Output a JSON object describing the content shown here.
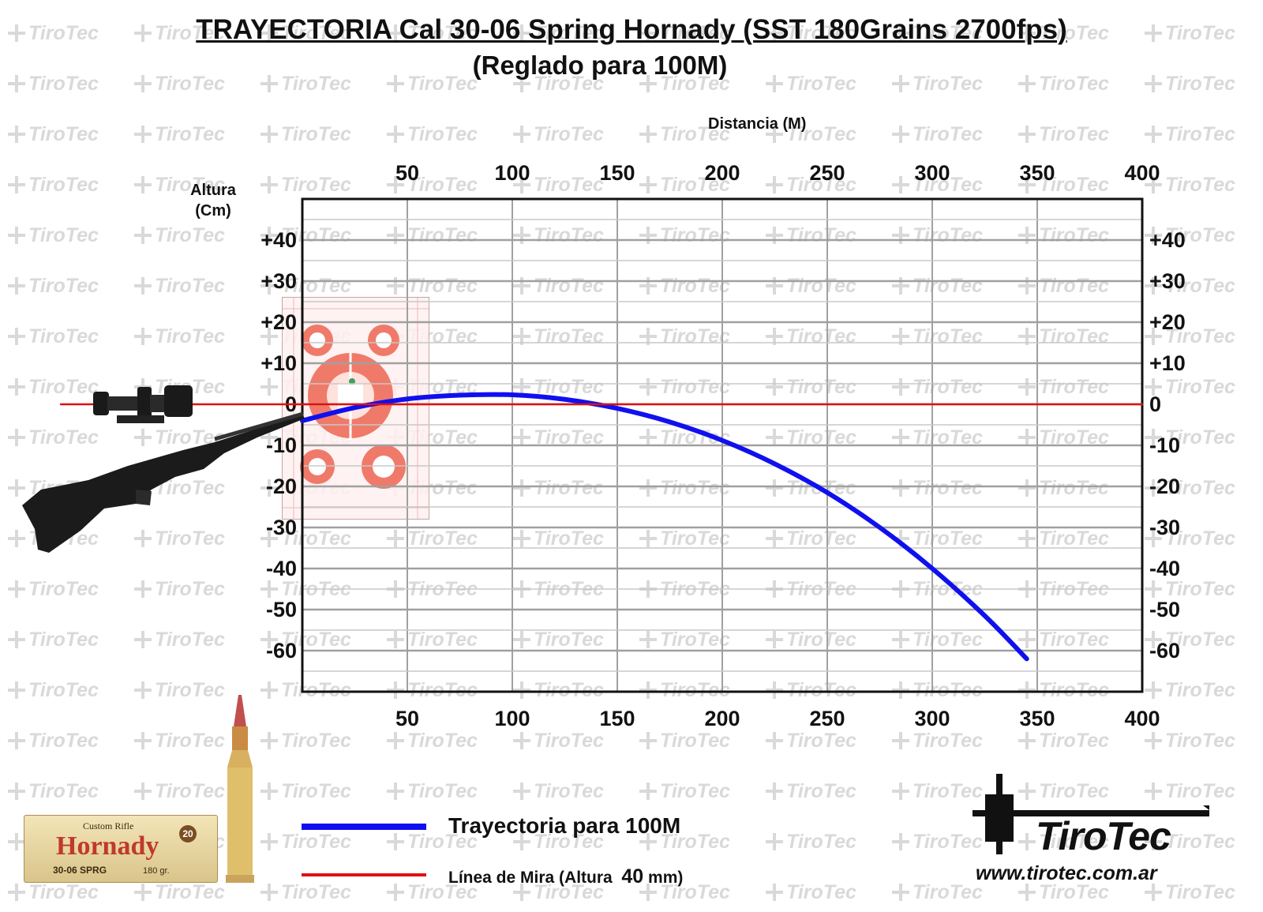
{
  "title": "TRAYECTORIA Cal 30-06 Spring Hornady (SST 180Grains 2700fps)",
  "subtitle": "(Reglado para 100M)",
  "watermark_text": "TiroTec",
  "chart_data": {
    "type": "line",
    "title": "TRAYECTORIA Cal 30-06 Spring Hornady (SST 180Grains 2700fps)",
    "subtitle": "(Reglado para 100M)",
    "xlabel": "Distancia (M)",
    "ylabel": "Altura (Cm)",
    "xlim": [
      0,
      400
    ],
    "ylim": [
      -70,
      50
    ],
    "x_ticks": [
      50,
      100,
      150,
      200,
      250,
      300,
      350,
      400
    ],
    "x_tick_labels": [
      "50",
      "100",
      "150",
      "200",
      "250",
      "300",
      "350",
      "400"
    ],
    "y_ticks": [
      40,
      30,
      20,
      10,
      0,
      -10,
      -20,
      -30,
      -40,
      -50,
      -60
    ],
    "y_tick_labels": [
      "+40",
      "+30",
      "+20",
      "+10",
      "0",
      "-10",
      "-20",
      "-30",
      "-40",
      "-50",
      "-60"
    ],
    "grid": true,
    "legend_position": "bottom",
    "series": [
      {
        "name": "Trayectoria para 100M",
        "color": "#1010ee",
        "x": [
          0,
          25,
          50,
          75,
          100,
          125,
          150,
          175,
          200,
          225,
          250,
          275,
          300,
          325,
          345
        ],
        "y": [
          -4,
          -0.8,
          1.3,
          2.2,
          2.3,
          1.2,
          -1.0,
          -4.3,
          -8.8,
          -14.5,
          -21.5,
          -30.0,
          -40.0,
          -51.5,
          -62.0
        ]
      },
      {
        "name": "Línea de Mira",
        "color": "#e01010",
        "x": [
          -115,
          400
        ],
        "y": [
          0,
          0
        ]
      }
    ]
  },
  "legend": {
    "trajectory_label": "Trayectoria para 100M",
    "sight_label_prefix": "Línea de Mira (Altura",
    "sight_label_value": "40",
    "sight_label_suffix": "mm)"
  },
  "ammo_box": {
    "line1": "Custom Rifle",
    "brand": "Hornady",
    "count": "20",
    "caliber": "30-06 SPRG",
    "weight": "180 gr."
  },
  "logo": {
    "name": "TiroTec",
    "url": "www.tirotec.com.ar"
  }
}
